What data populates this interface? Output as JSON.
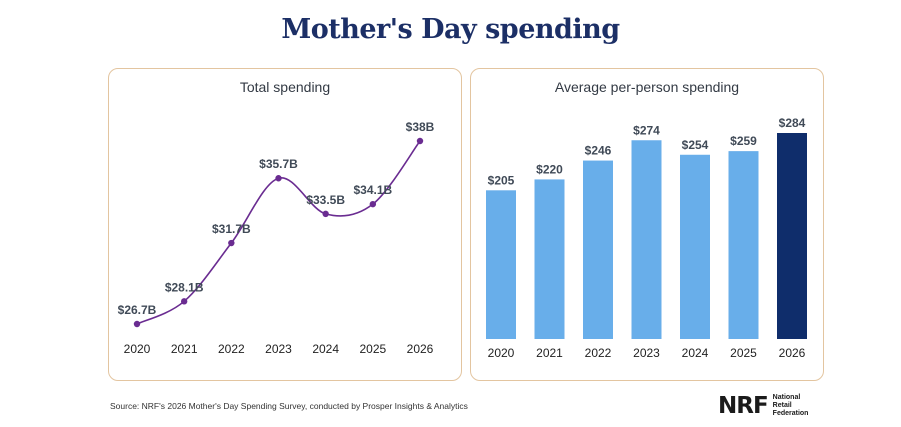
{
  "title": "Mother's Day spending",
  "source": "Source: NRF's 2026 Mother's Day Spending Survey, conducted by Prosper Insights & Analytics",
  "logo": {
    "mark": "NRF",
    "lines": [
      "National",
      "Retail",
      "Federation"
    ]
  },
  "colors": {
    "title": "#1c2f66",
    "line": "#6a2c91",
    "bar": "#68aeea",
    "bar_highlight": "#0f2d6b",
    "panel_border": "#e3c5a0"
  },
  "chart_data": [
    {
      "type": "line",
      "title": "Total spending",
      "categories": [
        "2020",
        "2021",
        "2022",
        "2023",
        "2024",
        "2025",
        "2026"
      ],
      "values": [
        26.7,
        28.1,
        31.7,
        35.7,
        33.5,
        34.1,
        38
      ],
      "labels": [
        "$26.7B",
        "$28.1B",
        "$31.7B",
        "$35.7B",
        "$33.5B",
        "$34.1B",
        "$38B"
      ],
      "xlabel": "",
      "ylabel": "",
      "ylim": [
        26.7,
        38
      ],
      "grid": false,
      "legend": "none"
    },
    {
      "type": "bar",
      "title": "Average per-person spending",
      "categories": [
        "2020",
        "2021",
        "2022",
        "2023",
        "2024",
        "2025",
        "2026"
      ],
      "values": [
        205,
        220,
        246,
        274,
        254,
        259,
        284
      ],
      "labels": [
        "$205",
        "$220",
        "$246",
        "$274",
        "$254",
        "$259",
        "$284"
      ],
      "highlight_index": 6,
      "xlabel": "",
      "ylabel": "",
      "ylim": [
        0,
        284
      ],
      "grid": false,
      "legend": "none"
    }
  ]
}
